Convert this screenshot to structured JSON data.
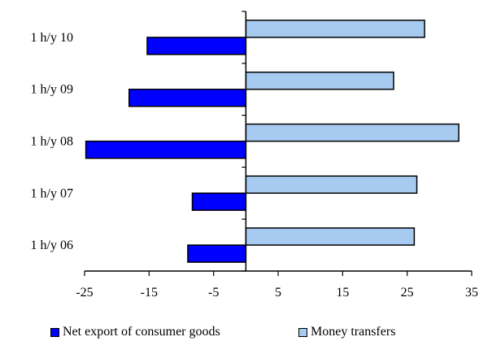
{
  "chart_data": {
    "type": "bar",
    "orientation": "horizontal",
    "title": "",
    "xlabel": "",
    "ylabel": "",
    "categories": [
      "1 h/y 10",
      "1 h/y 09",
      "1 h/y 08",
      "1 h/y 07",
      "1 h/y 06"
    ],
    "series": [
      {
        "name": "Net export of consumer goods",
        "color": "#0000ff",
        "values": [
          -15.3,
          -18.1,
          -24.8,
          -8.3,
          -9.0
        ]
      },
      {
        "name": "Money transfers",
        "color": "#a6caf0",
        "values": [
          27.7,
          22.9,
          33.0,
          26.5,
          26.1
        ]
      }
    ],
    "xlim": [
      -25,
      35
    ],
    "xticks": [
      -25,
      -15,
      -5,
      5,
      15,
      25,
      35
    ],
    "grid": false,
    "legend": "bottom"
  }
}
